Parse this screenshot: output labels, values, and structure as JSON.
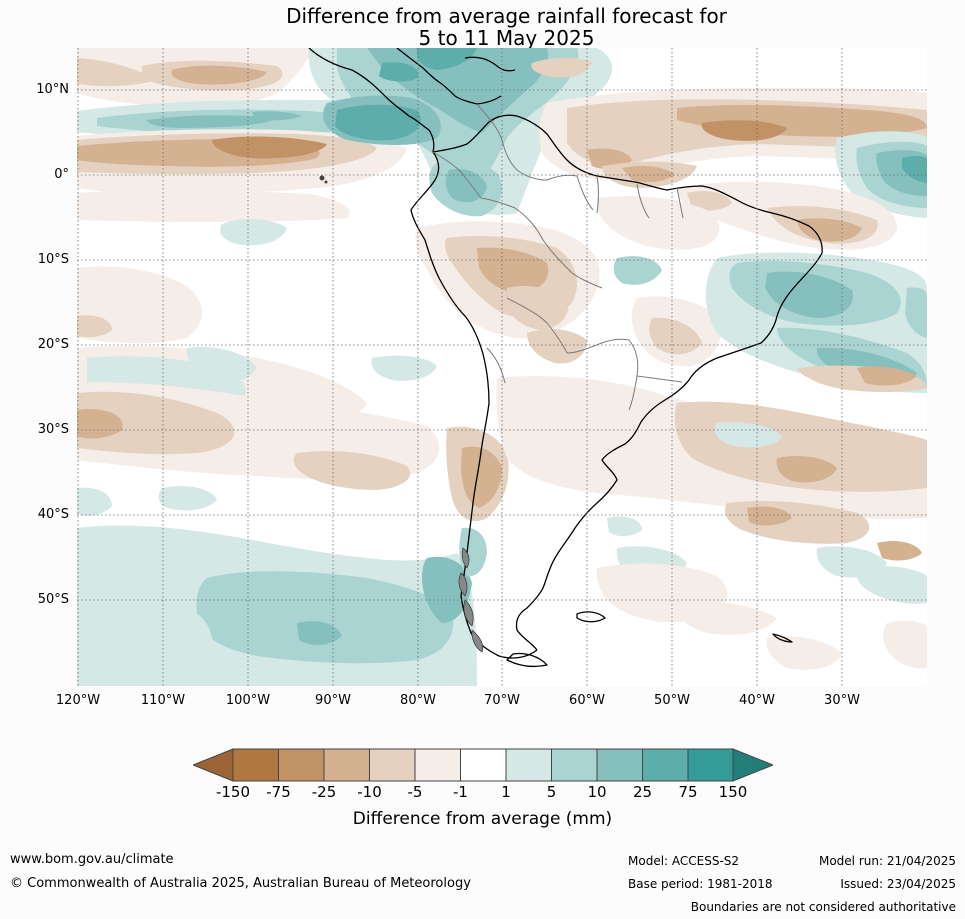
{
  "title": {
    "line1": "Difference from average rainfall forecast for",
    "line2": "5 to 11 May 2025"
  },
  "map": {
    "lat_labels": [
      "10°N",
      "0°",
      "10°S",
      "20°S",
      "30°S",
      "40°S",
      "50°S"
    ],
    "lon_labels": [
      "120°W",
      "110°W",
      "100°W",
      "90°W",
      "80°W",
      "70°W",
      "60°W",
      "50°W",
      "40°W",
      "30°W"
    ],
    "grid": "dotted"
  },
  "colorbar": {
    "labels": [
      "-150",
      "-75",
      "-25",
      "-10",
      "-5",
      "-1",
      "1",
      "5",
      "10",
      "25",
      "75",
      "150"
    ],
    "colors": [
      "#9a6434",
      "#b07840",
      "#c09265",
      "#d3b191",
      "#e4d1c0",
      "#f5ede7",
      "#ffffff",
      "#d4e8e6",
      "#aad4d2",
      "#86c0be",
      "#5dadaa",
      "#339b98",
      "#237e79"
    ],
    "title": "Difference from average (mm)"
  },
  "footer": {
    "website": "www.bom.gov.au/climate",
    "copyright": "© Commonwealth of Australia 2025, Australian Bureau of Meteorology",
    "model": "Model: ACCESS-S2",
    "base_period": "Base period: 1981-2018",
    "model_run": "Model run: 21/04/2025",
    "issued": "Issued: 23/04/2025",
    "disclaimer": "Boundaries are not considered authoritative"
  }
}
